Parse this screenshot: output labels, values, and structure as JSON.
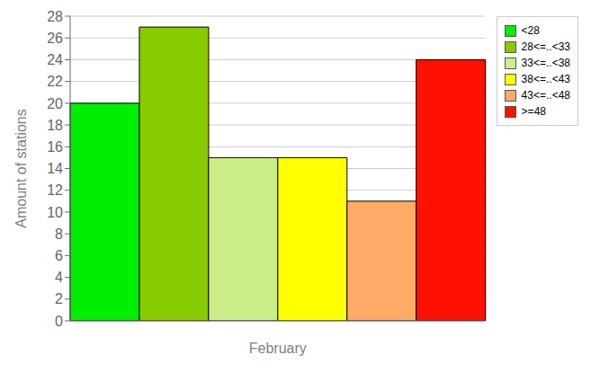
{
  "chart_data": {
    "type": "bar",
    "xlabel": "February",
    "ylabel": "Amount of stations",
    "categories": [
      "<28",
      "28<=..<33",
      "33<=..<38",
      "38<=..<43",
      "43<=..<48",
      ">=48"
    ],
    "values": [
      20,
      27,
      15,
      15,
      11,
      24
    ],
    "colors": [
      "#00ee00",
      "#88cc00",
      "#ccee88",
      "#ffff00",
      "#ffaa66",
      "#ff1100"
    ],
    "ylim": [
      0,
      28
    ],
    "yticks": [
      0,
      2,
      4,
      6,
      8,
      10,
      12,
      14,
      16,
      18,
      20,
      22,
      24,
      26,
      28
    ],
    "grid": true,
    "legend": "upper right",
    "tick_labels": "y"
  }
}
